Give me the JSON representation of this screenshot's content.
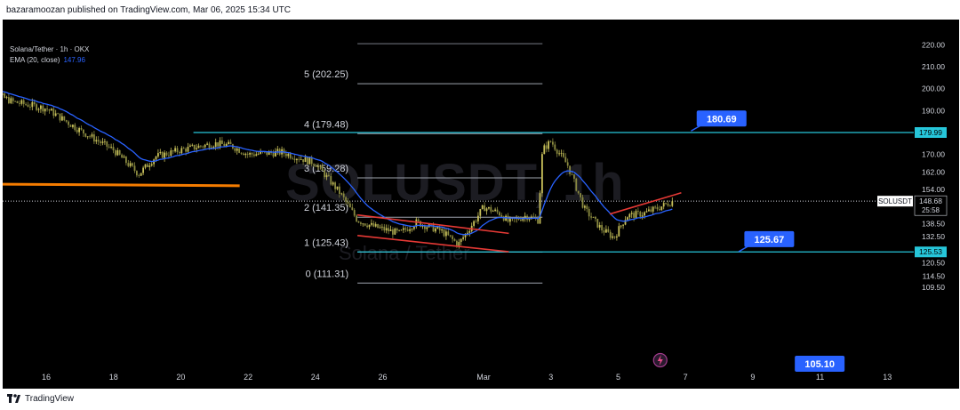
{
  "header": {
    "publisher_line": "bazaramoozan published on TradingView.com, Mar 06, 2025 15:34 UTC"
  },
  "legend": {
    "symbol_line": "Solana/Tether · 1h · OKX",
    "ema_label": "EMA (20, close)",
    "ema_value": "147.96"
  },
  "watermark": {
    "symbol": "SOLUSDT, 1h",
    "subtitle": "Solana / Tether"
  },
  "footer": {
    "brand": "TradingView"
  },
  "colors": {
    "background": "#000000",
    "candle_up": "#c8c05a",
    "candle_down": "#8a8a40",
    "ema_line": "#2962ff",
    "level_line": "#26c6da",
    "trend_line": "#e53935",
    "old_level_line": "#f57c00",
    "callout": "#2962ff"
  },
  "chart_data": {
    "type": "candlestick",
    "symbol": "SOLUSDT",
    "exchange": "OKX",
    "timeframe": "1h",
    "price_axis": {
      "ticks": [
        "220.00",
        "210.00",
        "200.00",
        "190.00",
        "179.99",
        "170.00",
        "162.00",
        "154.00",
        "148.68",
        "138.50",
        "132.50",
        "125.53",
        "120.50",
        "114.50",
        "109.50"
      ],
      "last_price": "148.68",
      "countdown": "25:58",
      "symbol_label": "SOLUSDT"
    },
    "time_axis": {
      "ticks": [
        "16",
        "18",
        "20",
        "22",
        "24",
        "26",
        "Mar",
        "3",
        "5",
        "7",
        "9",
        "11",
        "13"
      ]
    },
    "close_path": [
      [
        "2/14 00:00",
        201
      ],
      [
        "2/15 00:00",
        194
      ],
      [
        "2/16 00:00",
        191
      ],
      [
        "2/17 00:00",
        181
      ],
      [
        "2/18 00:00",
        172
      ],
      [
        "2/18 18:00",
        161
      ],
      [
        "2/19 06:00",
        169
      ],
      [
        "2/20 00:00",
        172
      ],
      [
        "2/21 00:00",
        175
      ],
      [
        "2/21 12:00",
        174
      ],
      [
        "2/22 00:00",
        170
      ],
      [
        "2/23 00:00",
        171
      ],
      [
        "2/24 00:00",
        166
      ],
      [
        "2/24 18:00",
        152
      ],
      [
        "2/25 06:00",
        140
      ],
      [
        "2/25 18:00",
        137
      ],
      [
        "2/26 12:00",
        134
      ],
      [
        "2/27 00:00",
        139
      ],
      [
        "2/27 18:00",
        135
      ],
      [
        "2/28 06:00",
        129
      ],
      [
        "2/28 18:00",
        140
      ],
      [
        "3/1 00:00",
        146
      ],
      [
        "3/1 12:00",
        143
      ],
      [
        "3/1 18:00",
        139
      ],
      [
        "3/2 06:00",
        142
      ],
      [
        "3/2 15:00",
        140
      ],
      [
        "3/2 18:00",
        172
      ],
      [
        "3/3 00:00",
        176
      ],
      [
        "3/3 12:00",
        165
      ],
      [
        "3/4 00:00",
        145
      ],
      [
        "3/4 12:00",
        136
      ],
      [
        "3/4 21:00",
        132
      ],
      [
        "3/5 06:00",
        142
      ],
      [
        "3/5 18:00",
        143
      ],
      [
        "3/6 06:00",
        146
      ],
      [
        "3/6 15:00",
        148.68
      ]
    ],
    "ema": {
      "period": 20,
      "source": "close",
      "value": "147.96"
    },
    "horizontal_levels": [
      {
        "label": "179.99",
        "price": 179.99
      },
      {
        "label": "125.53",
        "price": 125.53
      }
    ],
    "old_level": {
      "from": [
        "2/14 00:00",
        156.5
      ],
      "to": [
        "2/21 18:00",
        155.7
      ]
    },
    "fib_extension": {
      "levels": [
        {
          "label": "5 (202.25)",
          "price": 202.25
        },
        {
          "label": "4 (179.48)",
          "price": 179.48
        },
        {
          "label": "3 (159.28)",
          "price": 159.28
        },
        {
          "label": "2 (141.35)",
          "price": 141.35
        },
        {
          "label": "1 (125.43)",
          "price": 125.43
        },
        {
          "label": "0 (111.31)",
          "price": 111.31
        }
      ],
      "x_range": [
        "2/25 06:00",
        "3/2 18:00"
      ]
    },
    "trend_lines": [
      {
        "from": [
          "2/25 06:00",
          142.4
        ],
        "to": [
          "3/1 18:00",
          134.0
        ]
      },
      {
        "from": [
          "2/25 06:00",
          133.0
        ],
        "to": [
          "3/1 18:00",
          125.6
        ]
      },
      {
        "from": [
          "3/4 18:00",
          142.8
        ],
        "to": [
          "3/6 21:00",
          152.5
        ]
      }
    ],
    "callouts": [
      {
        "label": "180.69",
        "price": 180.69
      },
      {
        "label": "125.67",
        "price": 125.67
      },
      {
        "label": "105.10",
        "price": 105.1
      }
    ]
  }
}
